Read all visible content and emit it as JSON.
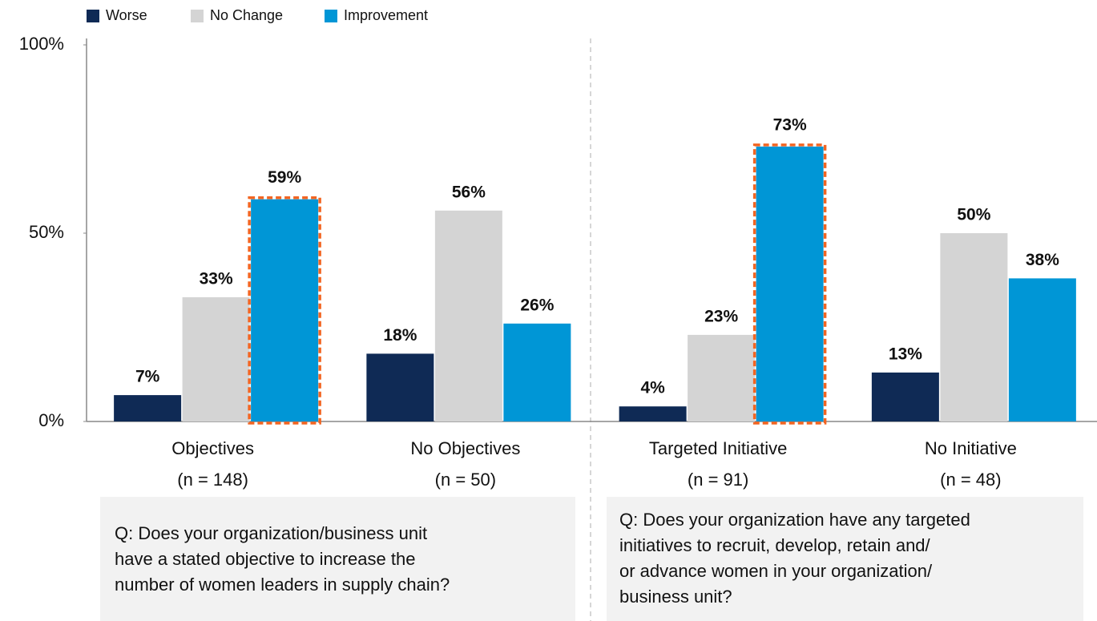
{
  "chart_data": {
    "type": "bar",
    "categories": [
      [
        "Objectives",
        "(n = 148)"
      ],
      [
        "No Objectives",
        "(n = 50)"
      ],
      [
        "Targeted Initiative",
        "(n = 91)"
      ],
      [
        "No Initiative",
        "(n = 48)"
      ]
    ],
    "series": [
      {
        "name": "Worse",
        "color": "#0f2a55",
        "values": [
          7,
          18,
          4,
          13
        ],
        "value_labels": [
          "7%",
          "18%",
          "4%",
          "13%"
        ]
      },
      {
        "name": "No Change",
        "color": "#d4d4d4",
        "values": [
          33,
          56,
          23,
          50
        ],
        "value_labels": [
          "33%",
          "56%",
          "23%",
          "50%"
        ]
      },
      {
        "name": "Improvement",
        "color": "#0096d6",
        "values": [
          59,
          26,
          73,
          38
        ],
        "value_labels": [
          "59%",
          "26%",
          "73%",
          "38%"
        ]
      }
    ],
    "ylim": [
      0,
      100
    ],
    "yticks": [
      {
        "value": 0,
        "label": "0%"
      },
      {
        "value": 50,
        "label": "50%"
      },
      {
        "value": 100,
        "label": "100%"
      }
    ],
    "legend": "top-left",
    "highlighted": [
      {
        "series": 2,
        "category": 0
      },
      {
        "series": 2,
        "category": 2
      }
    ],
    "highlight_color": "#f26522",
    "annotations": [
      [
        "Q: Does your organization/business unit",
        "have a stated objective to increase the",
        "number of women leaders in supply chain?"
      ],
      [
        "Q: Does your organization have any targeted",
        "initiatives to recruit, develop, retain and/",
        "or advance women in your organization/",
        "business unit?"
      ]
    ]
  }
}
